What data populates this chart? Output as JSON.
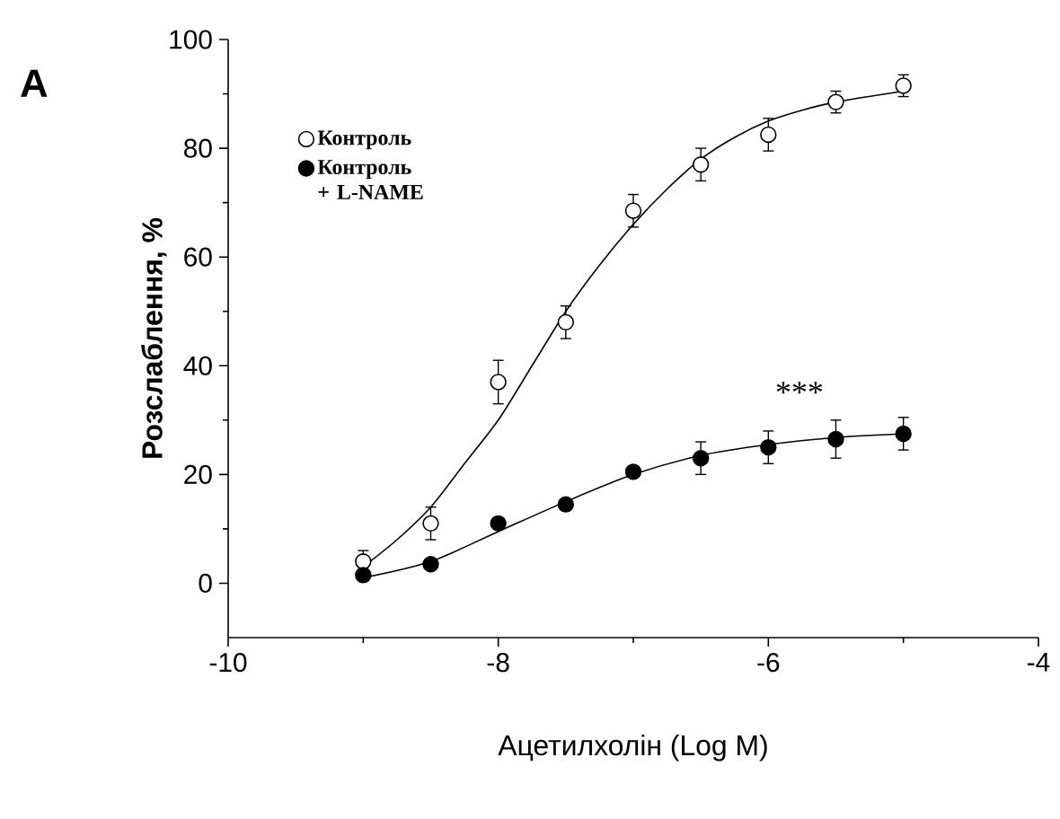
{
  "chart_data": {
    "type": "scatter",
    "xlabel": "Ацетилхолін (Log M)",
    "ylabel": "Розслаблення,  %",
    "xlim": [
      -10,
      -4
    ],
    "xticks": [
      -10,
      -8,
      -6,
      -4
    ],
    "ylim": [
      -10,
      100
    ],
    "yticks": [
      0,
      20,
      40,
      60,
      80,
      100
    ],
    "grid": false,
    "legend": "top left",
    "annotations": [
      "A",
      "***"
    ],
    "series": [
      {
        "name": "Контроль",
        "color": "#ffffff",
        "marker": "circle",
        "x": [
          -9,
          -8.5,
          -8,
          -7.5,
          -7,
          -6.5,
          -6,
          -5.5,
          -5
        ],
        "values": [
          4,
          11,
          37,
          48,
          68.5,
          77,
          82.5,
          88.5,
          91.5
        ],
        "errors": [
          2,
          3,
          4,
          3,
          3,
          3,
          3,
          2,
          2
        ]
      },
      {
        "name": "Контроль + L-NAME",
        "color": "#000000",
        "marker": "circle",
        "x": [
          -9,
          -8.5,
          -8,
          -7.5,
          -7,
          -6.5,
          -6,
          -5.5,
          -5
        ],
        "values": [
          1.5,
          3.5,
          11,
          14.5,
          20.5,
          23,
          25,
          26.5,
          27.5
        ],
        "errors": [
          null,
          null,
          null,
          null,
          null,
          3,
          3,
          3.5,
          3
        ]
      },
      {
        "type": "line",
        "marker": "none",
        "color": "#000000",
        "x": [
          -9,
          -8.75,
          -8.5,
          -8.25,
          -8,
          -7.75,
          -7.5,
          -7.25,
          -7,
          -6.75,
          -6.5,
          -6.25,
          -6,
          -5.75,
          -5.5,
          -5
        ],
        "values": [
          3,
          8,
          14,
          22,
          30,
          40,
          50,
          58.5,
          66,
          72.5,
          78,
          82,
          85,
          87,
          88.5,
          90.5
        ]
      },
      {
        "type": "line",
        "marker": "none",
        "color": "#000000",
        "x": [
          -9,
          -8.5,
          -8,
          -7.5,
          -7,
          -6.5,
          -6,
          -5.5,
          -5
        ],
        "values": [
          1,
          4,
          9.5,
          15,
          20,
          23.5,
          25.5,
          26.8,
          27.5
        ]
      }
    ]
  }
}
